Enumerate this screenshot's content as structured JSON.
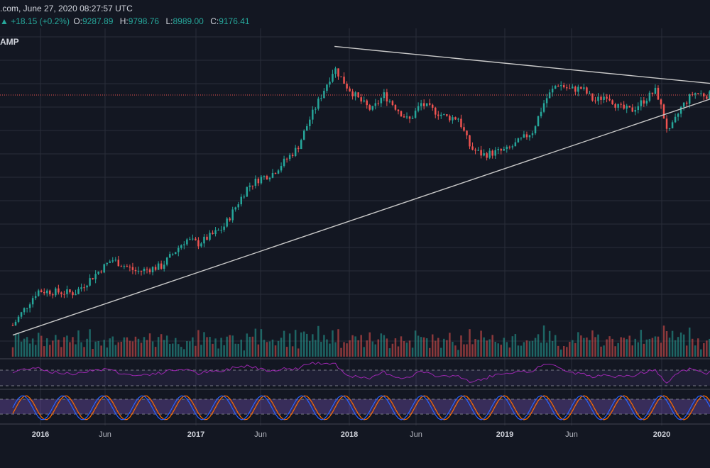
{
  "header": {
    "source_time": ".com, June 27, 2020 08:27:57 UTC",
    "change_arrow": "▲",
    "change": "+18.15 (+0.2%)",
    "o_label": "O:",
    "o_value": "9287.89",
    "h_label": "H:",
    "h_value": "9798.76",
    "l_label": "L:",
    "l_value": "8989.00",
    "c_label": "C:",
    "c_value": "9176.41",
    "symbol": "AMP"
  },
  "colors": {
    "background": "#131722",
    "grid": "#2a2e39",
    "up": "#26a69a",
    "down": "#ef5350",
    "trendline": "#c8c8c8",
    "rsi": "#9c27b0",
    "stoch_k": "#2962ff",
    "stoch_d": "#ff6d00"
  },
  "chart_data": {
    "type": "candlestick",
    "interval": "weekly",
    "x_range": [
      "2015-10",
      "2020-06"
    ],
    "y_scale": "log",
    "x_tick_labels": [
      {
        "label": "2016",
        "date": "2016-01",
        "bold": true
      },
      {
        "label": "Jun",
        "date": "2016-06",
        "bold": false
      },
      {
        "label": "2017",
        "date": "2017-01",
        "bold": true
      },
      {
        "label": "Jun",
        "date": "2017-06",
        "bold": false
      },
      {
        "label": "2018",
        "date": "2018-01",
        "bold": true
      },
      {
        "label": "Jun",
        "date": "2018-06",
        "bold": false
      },
      {
        "label": "2019",
        "date": "2019-01",
        "bold": true
      },
      {
        "label": "Jun",
        "date": "2019-06",
        "bold": false
      },
      {
        "label": "2020",
        "date": "2020-01",
        "bold": true
      }
    ],
    "price_anchors": [
      {
        "date": "2015-10",
        "close": 250
      },
      {
        "date": "2015-12",
        "close": 430
      },
      {
        "date": "2016-03",
        "close": 415
      },
      {
        "date": "2016-06",
        "close": 700
      },
      {
        "date": "2016-08",
        "close": 580
      },
      {
        "date": "2016-10",
        "close": 630
      },
      {
        "date": "2016-12",
        "close": 960
      },
      {
        "date": "2017-01",
        "close": 900
      },
      {
        "date": "2017-03",
        "close": 1150
      },
      {
        "date": "2017-05",
        "close": 2200
      },
      {
        "date": "2017-06",
        "close": 2500
      },
      {
        "date": "2017-07",
        "close": 2700
      },
      {
        "date": "2017-09",
        "close": 4000
      },
      {
        "date": "2017-10",
        "close": 6300
      },
      {
        "date": "2017-12",
        "close": 14000
      },
      {
        "date": "2018-01",
        "close": 10500
      },
      {
        "date": "2018-02",
        "close": 8500
      },
      {
        "date": "2018-03",
        "close": 7200
      },
      {
        "date": "2018-04",
        "close": 9200
      },
      {
        "date": "2018-06",
        "close": 6100
      },
      {
        "date": "2018-07",
        "close": 8000
      },
      {
        "date": "2018-09",
        "close": 6500
      },
      {
        "date": "2018-10",
        "close": 6400
      },
      {
        "date": "2018-11",
        "close": 4000
      },
      {
        "date": "2018-12",
        "close": 3600
      },
      {
        "date": "2019-02",
        "close": 3900
      },
      {
        "date": "2019-04",
        "close": 5200
      },
      {
        "date": "2019-05",
        "close": 8400
      },
      {
        "date": "2019-06",
        "close": 11000
      },
      {
        "date": "2019-07",
        "close": 10000
      },
      {
        "date": "2019-08",
        "close": 10200
      },
      {
        "date": "2019-09",
        "close": 8300
      },
      {
        "date": "2019-10",
        "close": 9200
      },
      {
        "date": "2019-11",
        "close": 7500
      },
      {
        "date": "2019-12",
        "close": 7200
      },
      {
        "date": "2020-02",
        "close": 9900
      },
      {
        "date": "2020-03",
        "close": 5000
      },
      {
        "date": "2020-04",
        "close": 7500
      },
      {
        "date": "2020-05",
        "close": 9500
      },
      {
        "date": "2020-06",
        "close": 9176.41
      }
    ],
    "trendlines": [
      {
        "name": "support",
        "from": {
          "date": "2015-10",
          "price": 215
        },
        "to": {
          "date": "2020-06",
          "price": 8600
        }
      },
      {
        "name": "resistance",
        "from": {
          "date": "2017-12",
          "price": 19600
        },
        "to": {
          "date": "2020-06",
          "price": 11000
        }
      }
    ],
    "horizontal_line": {
      "price": 9176.41,
      "style": "dotted"
    },
    "indicators": [
      "volume",
      "rsi",
      "stochastic_rsi"
    ]
  }
}
